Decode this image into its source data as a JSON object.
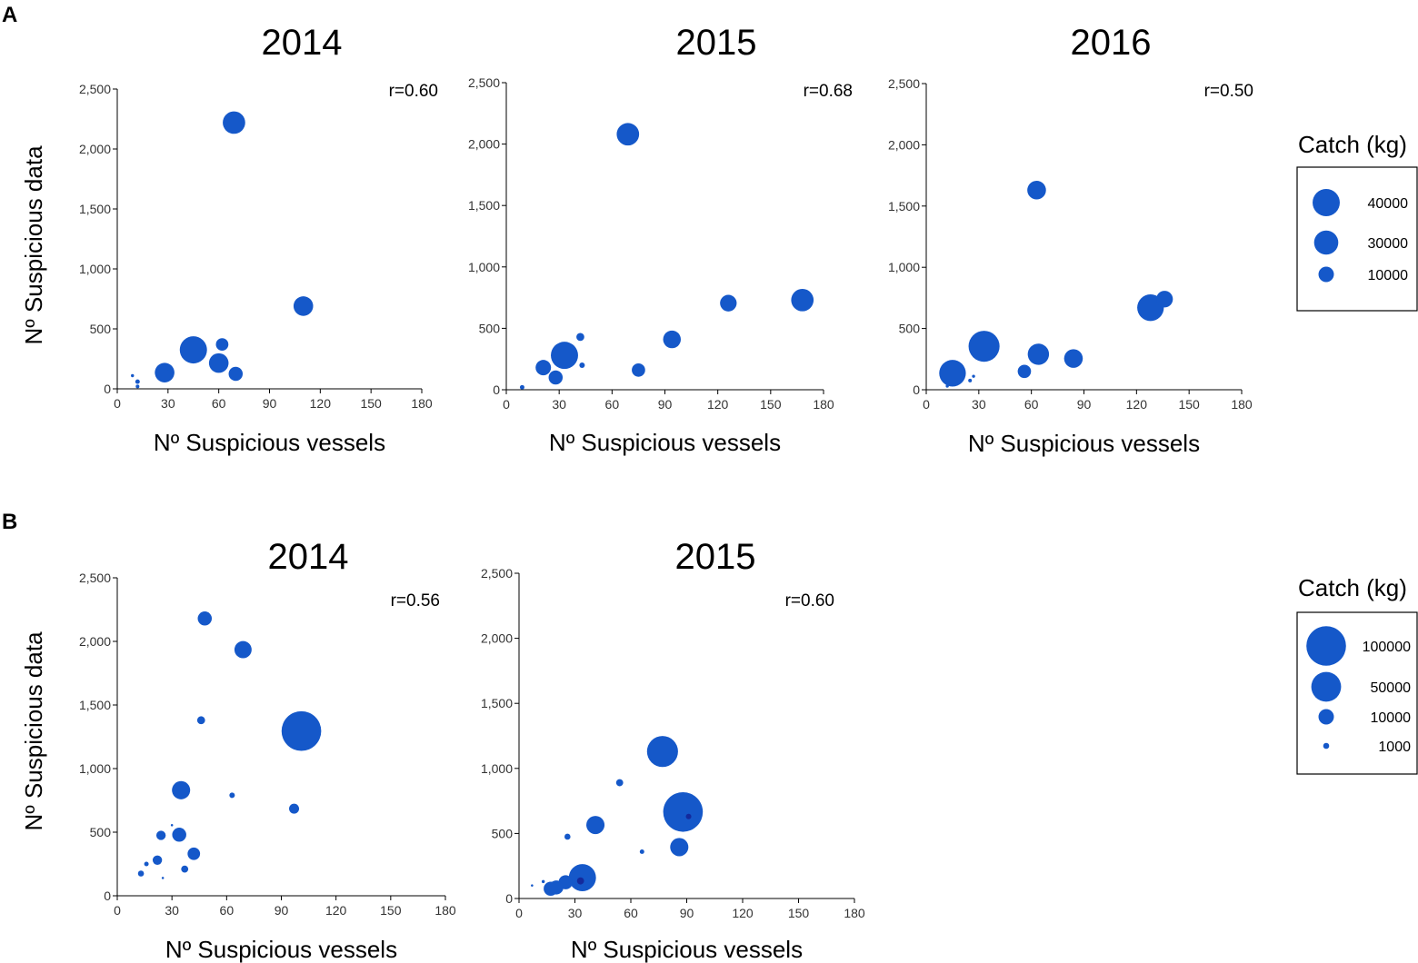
{
  "panel_labels": {
    "a": "A",
    "b": "B"
  },
  "point_color": "#1558c9",
  "highlight_color": "#142a9c",
  "chart_data": [
    {
      "id": "A-2014",
      "type": "scatter",
      "title": "2014",
      "r_label": "r=0.60",
      "xlabel": "Nº Suspicious vessels",
      "ylabel": "Nº Suspicious data",
      "xlim": [
        0,
        180
      ],
      "ylim": [
        0,
        2500
      ],
      "xticks": [
        0,
        30,
        60,
        90,
        120,
        150,
        180
      ],
      "xtick_labels": [
        "0",
        "30",
        "60",
        "90",
        "120",
        "150",
        "180"
      ],
      "yticks": [
        0,
        500,
        1000,
        1500,
        2000,
        2500
      ],
      "ytick_labels": [
        "0",
        "500",
        "1,000",
        "1,500",
        "2,000",
        "2,500"
      ],
      "points": [
        {
          "x": 69,
          "y": 2220,
          "catch": 25000
        },
        {
          "x": 110,
          "y": 690,
          "catch": 18000
        },
        {
          "x": 45,
          "y": 325,
          "catch": 40000
        },
        {
          "x": 62,
          "y": 370,
          "catch": 6000
        },
        {
          "x": 60,
          "y": 215,
          "catch": 18000
        },
        {
          "x": 70,
          "y": 125,
          "catch": 8000
        },
        {
          "x": 28,
          "y": 135,
          "catch": 18000
        },
        {
          "x": 30,
          "y": 175,
          "catch": 500
        },
        {
          "x": 12,
          "y": 60,
          "catch": 500
        },
        {
          "x": 9,
          "y": 110,
          "catch": 200
        },
        {
          "x": 12,
          "y": 20,
          "catch": 300
        }
      ]
    },
    {
      "id": "A-2015",
      "type": "scatter",
      "title": "2015",
      "r_label": "r=0.68",
      "xlabel": "Nº Suspicious vessels",
      "ylabel": "",
      "xlim": [
        0,
        180
      ],
      "ylim": [
        0,
        2500
      ],
      "xticks": [
        0,
        30,
        60,
        90,
        120,
        150,
        180
      ],
      "xtick_labels": [
        "0",
        "30",
        "60",
        "90",
        "120",
        "150",
        "180"
      ],
      "yticks": [
        0,
        500,
        1000,
        1500,
        2000,
        2500
      ],
      "ytick_labels": [
        "0",
        "500",
        "1,000",
        "1,500",
        "2,000",
        "2,500"
      ],
      "points": [
        {
          "x": 69,
          "y": 2080,
          "catch": 25000
        },
        {
          "x": 168,
          "y": 730,
          "catch": 25000
        },
        {
          "x": 126,
          "y": 705,
          "catch": 12000
        },
        {
          "x": 94,
          "y": 410,
          "catch": 14000
        },
        {
          "x": 33,
          "y": 280,
          "catch": 40000
        },
        {
          "x": 42,
          "y": 430,
          "catch": 2000
        },
        {
          "x": 21,
          "y": 180,
          "catch": 10000
        },
        {
          "x": 28,
          "y": 100,
          "catch": 8000
        },
        {
          "x": 75,
          "y": 160,
          "catch": 7000
        },
        {
          "x": 43,
          "y": 200,
          "catch": 800
        },
        {
          "x": 9,
          "y": 20,
          "catch": 500
        }
      ]
    },
    {
      "id": "A-2016",
      "type": "scatter",
      "title": "2016",
      "r_label": "r=0.50",
      "xlabel": "Nº Suspicious vessels",
      "ylabel": "",
      "xlim": [
        0,
        180
      ],
      "ylim": [
        0,
        2500
      ],
      "xticks": [
        0,
        30,
        60,
        90,
        120,
        150,
        180
      ],
      "xtick_labels": [
        "0",
        "30",
        "60",
        "90",
        "120",
        "150",
        "180"
      ],
      "yticks": [
        0,
        500,
        1000,
        1500,
        2000,
        2500
      ],
      "ytick_labels": [
        "0",
        "500",
        "1,000",
        "1,500",
        "2,000",
        "2,500"
      ],
      "points": [
        {
          "x": 63,
          "y": 1630,
          "catch": 16000
        },
        {
          "x": 136,
          "y": 740,
          "catch": 12000
        },
        {
          "x": 128,
          "y": 670,
          "catch": 38000
        },
        {
          "x": 33,
          "y": 355,
          "catch": 55000
        },
        {
          "x": 64,
          "y": 290,
          "catch": 22000
        },
        {
          "x": 84,
          "y": 255,
          "catch": 16000
        },
        {
          "x": 56,
          "y": 150,
          "catch": 7000
        },
        {
          "x": 15,
          "y": 135,
          "catch": 38000
        },
        {
          "x": 25,
          "y": 75,
          "catch": 300
        },
        {
          "x": 27,
          "y": 110,
          "catch": 200
        },
        {
          "x": 12,
          "y": 30,
          "catch": 200
        }
      ]
    },
    {
      "id": "B-2014",
      "type": "scatter",
      "title": "2014",
      "r_label": "r=0.56",
      "xlabel": "Nº Suspicious vessels",
      "ylabel": "Nº Suspicious data",
      "xlim": [
        0,
        180
      ],
      "ylim": [
        0,
        2500
      ],
      "xticks": [
        0,
        30,
        60,
        90,
        120,
        150,
        180
      ],
      "xtick_labels": [
        "0",
        "30",
        "60",
        "90",
        "120",
        "150",
        "180"
      ],
      "yticks": [
        0,
        500,
        1000,
        1500,
        2000,
        2500
      ],
      "ytick_labels": [
        "0",
        "500",
        "1,000",
        "1,500",
        "2,000",
        "2,500"
      ],
      "points": [
        {
          "x": 48,
          "y": 2180,
          "catch": 8000
        },
        {
          "x": 69,
          "y": 1935,
          "catch": 13000
        },
        {
          "x": 101,
          "y": 1295,
          "catch": 100000
        },
        {
          "x": 46,
          "y": 1380,
          "catch": 2000
        },
        {
          "x": 35,
          "y": 830,
          "catch": 15000
        },
        {
          "x": 63,
          "y": 790,
          "catch": 800
        },
        {
          "x": 97,
          "y": 685,
          "catch": 3500
        },
        {
          "x": 34,
          "y": 480,
          "catch": 8000
        },
        {
          "x": 24,
          "y": 475,
          "catch": 3000
        },
        {
          "x": 42,
          "y": 330,
          "catch": 6000
        },
        {
          "x": 22,
          "y": 280,
          "catch": 3000
        },
        {
          "x": 37,
          "y": 210,
          "catch": 1500
        },
        {
          "x": 16,
          "y": 250,
          "catch": 500
        },
        {
          "x": 13,
          "y": 175,
          "catch": 1000
        },
        {
          "x": 30,
          "y": 555,
          "catch": 100
        },
        {
          "x": 25,
          "y": 140,
          "catch": 100
        }
      ]
    },
    {
      "id": "B-2015",
      "type": "scatter",
      "title": "2015",
      "r_label": "r=0.60",
      "xlabel": "Nº Suspicious vessels",
      "ylabel": "",
      "xlim": [
        0,
        180
      ],
      "ylim": [
        0,
        2500
      ],
      "xticks": [
        0,
        30,
        60,
        90,
        120,
        150,
        180
      ],
      "xtick_labels": [
        "0",
        "30",
        "60",
        "90",
        "120",
        "150",
        "180"
      ],
      "yticks": [
        0,
        500,
        1000,
        1500,
        2000,
        2500
      ],
      "ytick_labels": [
        "0",
        "500",
        "1,000",
        "1,500",
        "2,000",
        "2,500"
      ],
      "points": [
        {
          "x": 77,
          "y": 1130,
          "catch": 55000
        },
        {
          "x": 88,
          "y": 665,
          "catch": 100000
        },
        {
          "x": 91,
          "y": 630,
          "catch": 800,
          "highlight": true
        },
        {
          "x": 54,
          "y": 890,
          "catch": 1500
        },
        {
          "x": 86,
          "y": 395,
          "catch": 15000
        },
        {
          "x": 41,
          "y": 565,
          "catch": 15000
        },
        {
          "x": 26,
          "y": 475,
          "catch": 1000
        },
        {
          "x": 66,
          "y": 360,
          "catch": 500
        },
        {
          "x": 34,
          "y": 160,
          "catch": 40000
        },
        {
          "x": 33,
          "y": 135,
          "catch": 1500,
          "highlight": true
        },
        {
          "x": 25,
          "y": 125,
          "catch": 8000
        },
        {
          "x": 20,
          "y": 85,
          "catch": 8000
        },
        {
          "x": 17,
          "y": 75,
          "catch": 8000
        },
        {
          "x": 13,
          "y": 130,
          "catch": 200
        },
        {
          "x": 7,
          "y": 100,
          "catch": 100
        }
      ]
    }
  ],
  "legend_a": {
    "title": "Catch (kg)",
    "entries": [
      {
        "label": "40000",
        "catch": 40000
      },
      {
        "label": "30000",
        "catch": 30000
      },
      {
        "label": "10000",
        "catch": 10000
      }
    ]
  },
  "legend_b": {
    "title": "Catch (kg)",
    "entries": [
      {
        "label": "100000",
        "catch": 100000
      },
      {
        "label": "50000",
        "catch": 50000
      },
      {
        "label": "10000",
        "catch": 10000
      },
      {
        "label": "1000",
        "catch": 1000
      }
    ]
  }
}
